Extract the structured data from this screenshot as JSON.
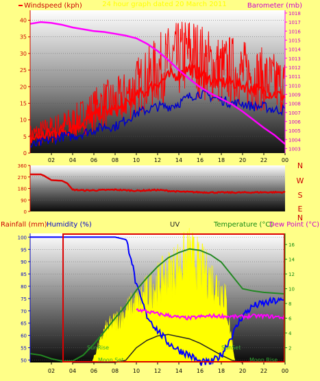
{
  "header": {
    "windspeed_label": "Windspeed (kph)",
    "title": "24 hour graph dated 20 March 2011",
    "barometer_label": "Barometer (mb)"
  },
  "panel3": {
    "rainfall_label": "Rainfall (mm)",
    "humidity_label": "Humidity (%)",
    "uv_label": "UV",
    "temperature_label": "Temperature (°C)",
    "dewpoint_label": "Dew Point (°C)",
    "annotations": {
      "sunrise": "SunRise",
      "moonset": "Moon Set",
      "sunset": "SunSet",
      "moonrise": "Moon Rise"
    }
  },
  "colors": {
    "page_bg": "#ffff88",
    "windspeed": "#ff0000",
    "gust": "#ff0000",
    "avg_wind": "#0000cc",
    "barometer": "#ff00ff",
    "direction": "#dd0000",
    "humidity": "#0000ff",
    "temperature": "#228822",
    "dewpoint": "#ff00ff",
    "uv": "#ffff00",
    "solar": "#ffff00",
    "rainfall": "#000000"
  },
  "chart_data": [
    {
      "type": "line",
      "title": "24 hour graph dated 20 March 2011",
      "x_ticks": [
        "02",
        "04",
        "06",
        "08",
        "10",
        "12",
        "14",
        "16",
        "18",
        "20",
        "22",
        "00"
      ],
      "left_axis": {
        "label": "Windspeed (kph)",
        "ticks": [
          0,
          5,
          10,
          15,
          20,
          25,
          30,
          35,
          40
        ],
        "ylim": [
          0,
          43
        ]
      },
      "right_axis": {
        "label": "Barometer (mb)",
        "ticks": [
          1003,
          1004,
          1005,
          1006,
          1007,
          1008,
          1009,
          1010,
          1011,
          1012,
          1013,
          1014,
          1015,
          1016,
          1017,
          1018
        ],
        "ylim": [
          1002.5,
          1018.3
        ]
      },
      "series": [
        {
          "axis": "left",
          "hours": [
            0,
            1,
            2,
            3,
            4,
            5,
            6,
            7,
            8,
            9,
            10,
            11,
            12,
            13,
            14,
            15,
            16,
            17,
            18,
            19,
            20,
            21,
            22,
            23,
            24
          ],
          "values": [
            5,
            6,
            7,
            8,
            9,
            11,
            13,
            15,
            15,
            17,
            20,
            22,
            25,
            27,
            28,
            30,
            28,
            26,
            25,
            25,
            24,
            23,
            22,
            21,
            20
          ]
        },
        {
          "axis": "left",
          "hours": [
            0,
            1,
            2,
            3,
            4,
            5,
            6,
            7,
            8,
            9,
            10,
            11,
            12,
            13,
            14,
            15,
            16,
            17,
            18,
            19,
            20,
            21,
            22,
            23,
            24
          ],
          "values": [
            2,
            3,
            4,
            5,
            5,
            6,
            7,
            8,
            8,
            10,
            12,
            13,
            14,
            14,
            15,
            17,
            18,
            17,
            16,
            15,
            15,
            14,
            14,
            13,
            13
          ]
        },
        {
          "axis": "right",
          "hours": [
            0,
            1,
            2,
            3,
            4,
            5,
            6,
            7,
            8,
            9,
            10,
            11,
            12,
            13,
            14,
            15,
            16,
            17,
            18,
            19,
            20,
            21,
            22,
            23,
            24
          ],
          "values": [
            1016.8,
            1017.0,
            1016.9,
            1016.7,
            1016.4,
            1016.2,
            1016.0,
            1015.9,
            1015.7,
            1015.5,
            1015.2,
            1014.6,
            1013.8,
            1012.8,
            1011.7,
            1010.7,
            1009.8,
            1009.1,
            1008.5,
            1007.9,
            1007.1,
            1006.2,
            1005.3,
            1004.5,
            1003.5
          ]
        }
      ]
    },
    {
      "type": "line",
      "x_ticks": [
        "02",
        "04",
        "06",
        "08",
        "10",
        "12",
        "14",
        "16",
        "18",
        "20",
        "22",
        "00"
      ],
      "left_axis": {
        "ticks": [
          0,
          90,
          180,
          270,
          360
        ],
        "ylim": [
          0,
          360
        ]
      },
      "direction_labels": [
        "N",
        "W",
        "S",
        "E",
        "N"
      ],
      "series": [
        {
          "axis": "left",
          "hours": [
            0,
            1,
            1.3,
            2,
            3,
            3.5,
            4,
            5,
            6,
            8,
            10,
            12,
            14,
            16,
            18,
            20,
            22,
            24
          ],
          "values": [
            290,
            290,
            280,
            245,
            240,
            220,
            170,
            165,
            165,
            170,
            162,
            168,
            155,
            150,
            148,
            148,
            150,
            150
          ]
        }
      ]
    },
    {
      "type": "line",
      "x_ticks": [
        "02",
        "04",
        "06",
        "08",
        "10",
        "12",
        "14",
        "16",
        "18",
        "20",
        "22",
        "00"
      ],
      "humidity_axis": {
        "label": "Humidity (%)",
        "ticks": [
          50,
          55,
          60,
          65,
          70,
          75,
          80,
          85,
          90,
          95,
          100
        ],
        "ylim": [
          49,
          101.5
        ]
      },
      "temperature_axis": {
        "label": "Temperature (°C)",
        "ticks": [
          2,
          4,
          6,
          8,
          10,
          12,
          14,
          16
        ],
        "ylim": [
          0,
          17.5
        ]
      },
      "rainfall_total_mm": 0,
      "series": [
        {
          "axis": "humidity",
          "hours": [
            0,
            3,
            3.5,
            7,
            8,
            9,
            9.5,
            10,
            11,
            12,
            13,
            14,
            15,
            16,
            17,
            18,
            19,
            20,
            21,
            22,
            23,
            24
          ],
          "values": [
            100,
            100,
            100,
            100,
            100,
            99,
            92,
            80,
            68,
            62,
            57,
            54,
            52,
            49,
            49,
            52,
            60,
            68,
            72,
            73,
            74,
            74
          ]
        },
        {
          "axis": "temperature",
          "hours": [
            0,
            1,
            2,
            3,
            4,
            5,
            6,
            7,
            8,
            9,
            10,
            11,
            12,
            13,
            14,
            15,
            16,
            17,
            18,
            19,
            20,
            21,
            22,
            23,
            24
          ],
          "values": [
            1.2,
            1.0,
            0.5,
            0.2,
            0.2,
            1.0,
            2.5,
            4.2,
            6.0,
            7.7,
            9.8,
            11.5,
            13.0,
            14.2,
            14.9,
            15.4,
            15.2,
            14.6,
            13.6,
            11.8,
            10.0,
            9.7,
            9.5,
            9.4,
            9.3
          ]
        },
        {
          "axis": "temperature",
          "hours": [
            10,
            11,
            12,
            13,
            14,
            15,
            16,
            17,
            18,
            19,
            20,
            21,
            22,
            23,
            24
          ],
          "values": [
            7.2,
            6.9,
            6.6,
            6.4,
            6.1,
            6.0,
            6.2,
            6.3,
            6.3,
            6.2,
            6.2,
            6.3,
            6.3,
            6.2,
            6.1
          ]
        },
        {
          "axis": "temperature",
          "hours": [
            4,
            5,
            6,
            7,
            8,
            9,
            10,
            11,
            12,
            13,
            14,
            15,
            16,
            17,
            18,
            19,
            20
          ],
          "values": [
            0,
            0,
            0,
            0,
            0,
            0.3,
            2,
            3,
            3.6,
            3.8,
            3.5,
            3.2,
            2.6,
            1.8,
            1,
            0.3,
            0
          ]
        }
      ]
    }
  ]
}
